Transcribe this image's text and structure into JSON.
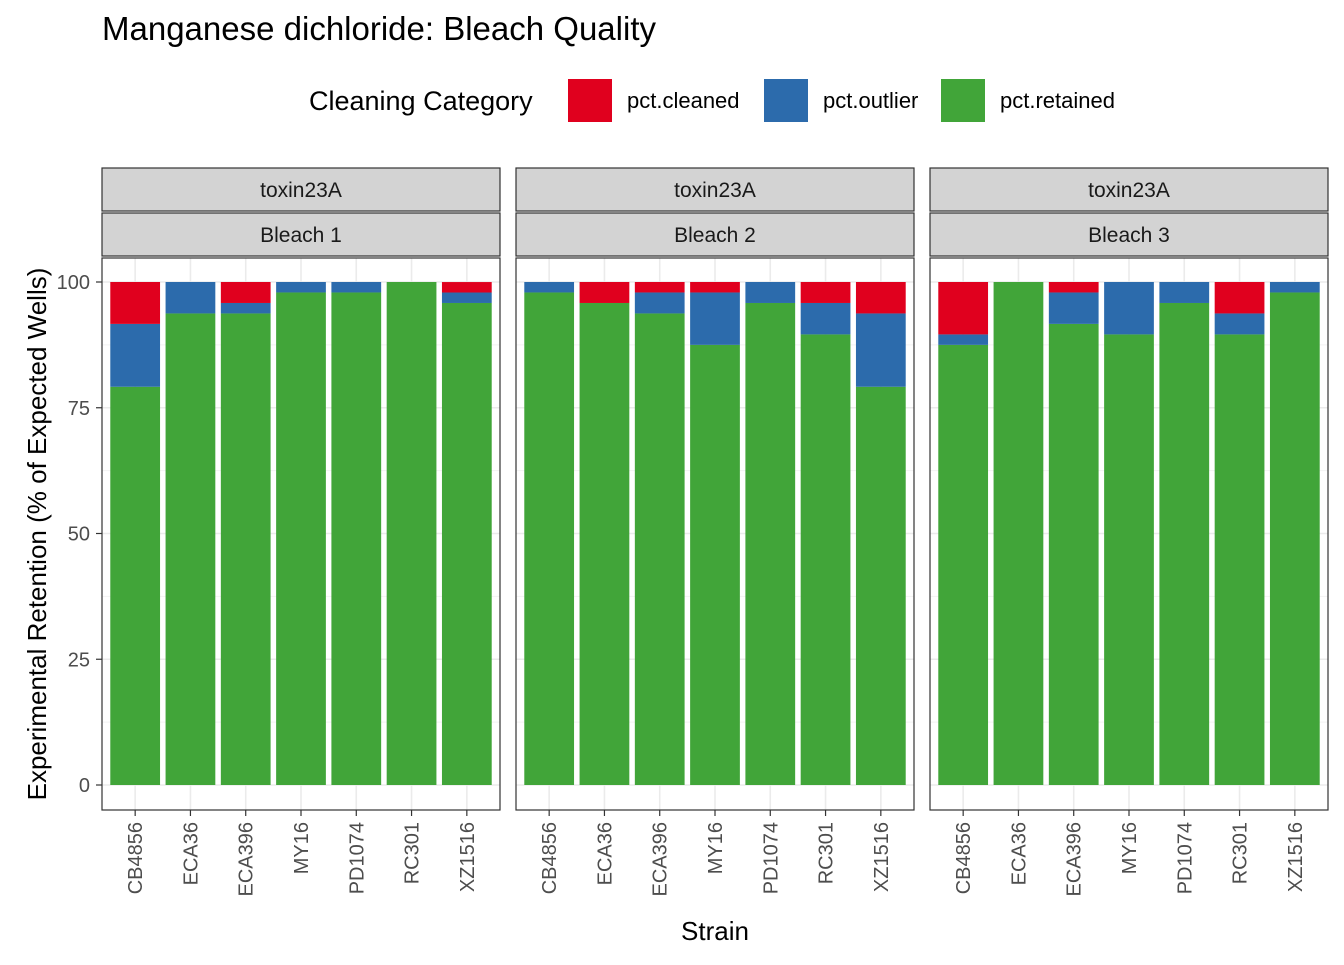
{
  "chart_data": {
    "type": "bar",
    "stacked": true,
    "title": "Manganese dichloride: Bleach Quality",
    "xlabel": "Strain",
    "ylabel": "Experimental Retention (% of Expected Wells)",
    "ylim": [
      0,
      100
    ],
    "yticks": [
      0,
      25,
      50,
      75,
      100
    ],
    "grid": true,
    "legend": {
      "title": "Cleaning Category",
      "position": "top",
      "entries": [
        {
          "name": "pct.cleaned",
          "color": "#E0001E"
        },
        {
          "name": "pct.outlier",
          "color": "#2C6BAC"
        },
        {
          "name": "pct.retained",
          "color": "#41A539"
        }
      ]
    },
    "categories": [
      "CB4856",
      "ECA36",
      "ECA396",
      "MY16",
      "PD1074",
      "RC301",
      "XZ1516"
    ],
    "panels": [
      {
        "strip_top": "toxin23A",
        "strip_bottom": "Bleach 1",
        "series": [
          {
            "name": "pct.retained",
            "values": [
              79.17,
              93.75,
              93.75,
              97.92,
              97.92,
              100,
              95.83
            ]
          },
          {
            "name": "pct.outlier",
            "values": [
              12.5,
              6.25,
              2.08,
              2.08,
              2.08,
              0,
              2.08
            ]
          },
          {
            "name": "pct.cleaned",
            "values": [
              8.33,
              0,
              4.17,
              0,
              0,
              0,
              2.08
            ]
          }
        ]
      },
      {
        "strip_top": "toxin23A",
        "strip_bottom": "Bleach 2",
        "series": [
          {
            "name": "pct.retained",
            "values": [
              97.92,
              95.83,
              93.75,
              87.5,
              95.83,
              89.58,
              79.17
            ]
          },
          {
            "name": "pct.outlier",
            "values": [
              2.08,
              0,
              4.17,
              10.42,
              4.17,
              6.25,
              14.58
            ]
          },
          {
            "name": "pct.cleaned",
            "values": [
              0,
              4.17,
              2.08,
              2.08,
              0,
              4.17,
              6.25
            ]
          }
        ]
      },
      {
        "strip_top": "toxin23A",
        "strip_bottom": "Bleach 3",
        "series": [
          {
            "name": "pct.retained",
            "values": [
              87.5,
              100,
              91.67,
              89.58,
              95.83,
              89.58,
              97.92
            ]
          },
          {
            "name": "pct.outlier",
            "values": [
              2.08,
              0,
              6.25,
              10.42,
              4.17,
              4.17,
              2.08
            ]
          },
          {
            "name": "pct.cleaned",
            "values": [
              10.42,
              0,
              2.08,
              0,
              0,
              6.25,
              0
            ]
          }
        ]
      }
    ]
  }
}
